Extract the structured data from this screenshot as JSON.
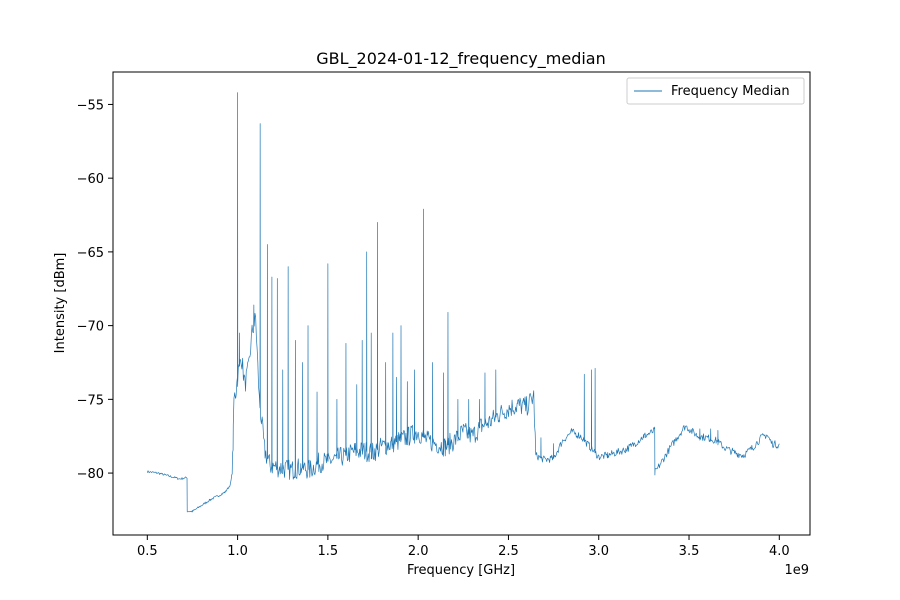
{
  "chart_data": {
    "type": "line",
    "title": "GBL_2024-01-12_frequency_median",
    "xlabel": "Frequency [GHz]",
    "ylabel": "Intensity [dBm]",
    "x_offset_label": "1e9",
    "xlim": [
      0.31,
      4.17
    ],
    "ylim": [
      -84.2,
      -52.8
    ],
    "x_ticks": [
      0.5,
      1.0,
      1.5,
      2.0,
      2.5,
      3.0,
      3.5,
      4.0
    ],
    "x_tick_labels": [
      "0.5",
      "1.0",
      "1.5",
      "2.0",
      "2.5",
      "3.0",
      "3.5",
      "4.0"
    ],
    "y_ticks": [
      -80,
      -75,
      -70,
      -65,
      -60,
      -55
    ],
    "y_tick_labels": [
      "−80",
      "−75",
      "−70",
      "−65",
      "−60",
      "−55"
    ],
    "legend_position": "top-right",
    "grid": false,
    "colors": {
      "series": "#1f77b4"
    },
    "series": [
      {
        "name": "Frequency Median",
        "baseline": [
          [
            0.5,
            -79.9
          ],
          [
            0.56,
            -80.0
          ],
          [
            0.62,
            -80.2
          ],
          [
            0.68,
            -80.4
          ],
          [
            0.72,
            -80.3
          ],
          [
            0.721,
            -82.6
          ],
          [
            0.75,
            -82.6
          ],
          [
            0.8,
            -82.2
          ],
          [
            0.85,
            -81.8
          ],
          [
            0.9,
            -81.5
          ],
          [
            0.93,
            -81.3
          ],
          [
            0.96,
            -80.8
          ],
          [
            0.97,
            -80.0
          ],
          [
            0.975,
            -78.0
          ],
          [
            0.98,
            -75.0
          ],
          [
            0.99,
            -74.5
          ],
          [
            1.0,
            -73.5
          ],
          [
            1.02,
            -72.0
          ],
          [
            1.04,
            -74.0
          ],
          [
            1.06,
            -73.0
          ],
          [
            1.08,
            -70.5
          ],
          [
            1.1,
            -69.5
          ],
          [
            1.12,
            -75.0
          ],
          [
            1.15,
            -78.5
          ],
          [
            1.18,
            -79.5
          ],
          [
            1.22,
            -79.6
          ],
          [
            1.26,
            -79.7
          ],
          [
            1.3,
            -79.8
          ],
          [
            1.35,
            -79.6
          ],
          [
            1.4,
            -79.8
          ],
          [
            1.45,
            -79.3
          ],
          [
            1.5,
            -79.2
          ],
          [
            1.55,
            -79.0
          ],
          [
            1.6,
            -78.8
          ],
          [
            1.65,
            -78.5
          ],
          [
            1.7,
            -78.5
          ],
          [
            1.75,
            -78.6
          ],
          [
            1.8,
            -78.2
          ],
          [
            1.85,
            -78.0
          ],
          [
            1.9,
            -77.8
          ],
          [
            1.95,
            -77.5
          ],
          [
            2.0,
            -77.2
          ],
          [
            2.05,
            -77.8
          ],
          [
            2.1,
            -78.0
          ],
          [
            2.15,
            -78.2
          ],
          [
            2.2,
            -77.8
          ],
          [
            2.25,
            -77.2
          ],
          [
            2.3,
            -77.5
          ],
          [
            2.35,
            -76.8
          ],
          [
            2.4,
            -76.5
          ],
          [
            2.45,
            -76.0
          ],
          [
            2.5,
            -75.6
          ],
          [
            2.55,
            -75.4
          ],
          [
            2.6,
            -75.5
          ],
          [
            2.64,
            -74.8
          ],
          [
            2.651,
            -78.8
          ],
          [
            2.7,
            -79.1
          ],
          [
            2.75,
            -79.0
          ],
          [
            2.8,
            -77.8
          ],
          [
            2.85,
            -77.2
          ],
          [
            2.9,
            -77.5
          ],
          [
            2.95,
            -78.2
          ],
          [
            3.0,
            -78.9
          ],
          [
            3.05,
            -78.8
          ],
          [
            3.1,
            -78.6
          ],
          [
            3.15,
            -78.4
          ],
          [
            3.2,
            -78.0
          ],
          [
            3.25,
            -77.5
          ],
          [
            3.3,
            -77.2
          ],
          [
            3.31,
            -77.1
          ],
          [
            3.311,
            -80.0
          ],
          [
            3.35,
            -79.2
          ],
          [
            3.4,
            -78.2
          ],
          [
            3.45,
            -77.3
          ],
          [
            3.48,
            -76.8
          ],
          [
            3.5,
            -77.0
          ],
          [
            3.55,
            -77.5
          ],
          [
            3.6,
            -77.6
          ],
          [
            3.65,
            -77.8
          ],
          [
            3.7,
            -78.3
          ],
          [
            3.75,
            -78.6
          ],
          [
            3.8,
            -78.8
          ],
          [
            3.85,
            -78.3
          ],
          [
            3.9,
            -77.6
          ],
          [
            3.93,
            -77.4
          ],
          [
            3.96,
            -78.0
          ],
          [
            4.0,
            -78.1
          ]
        ],
        "peaks": [
          [
            1.0,
            -54.2
          ],
          [
            1.01,
            -70.5
          ],
          [
            1.09,
            -68.6
          ],
          [
            1.125,
            -56.3
          ],
          [
            1.165,
            -64.5
          ],
          [
            1.19,
            -66.7
          ],
          [
            1.22,
            -66.8
          ],
          [
            1.25,
            -73.0
          ],
          [
            1.28,
            -66.0
          ],
          [
            1.32,
            -71.0
          ],
          [
            1.36,
            -72.5
          ],
          [
            1.39,
            -70.0
          ],
          [
            1.44,
            -74.5
          ],
          [
            1.5,
            -65.8
          ],
          [
            1.55,
            -75.0
          ],
          [
            1.6,
            -71.2
          ],
          [
            1.66,
            -74.0
          ],
          [
            1.69,
            -71.0
          ],
          [
            1.715,
            -65.0
          ],
          [
            1.74,
            -70.5
          ],
          [
            1.775,
            -63.0
          ],
          [
            1.82,
            -72.5
          ],
          [
            1.86,
            -70.5
          ],
          [
            1.88,
            -73.5
          ],
          [
            1.905,
            -70.0
          ],
          [
            1.94,
            -73.8
          ],
          [
            1.98,
            -73.0
          ],
          [
            2.03,
            -62.1
          ],
          [
            2.08,
            -72.5
          ],
          [
            2.14,
            -73.2
          ],
          [
            2.165,
            -69.1
          ],
          [
            2.22,
            -75.0
          ],
          [
            2.28,
            -75.0
          ],
          [
            2.34,
            -75.0
          ],
          [
            2.37,
            -73.2
          ],
          [
            2.43,
            -73.0
          ],
          [
            2.68,
            -77.6
          ],
          [
            2.75,
            -78.0
          ],
          [
            2.92,
            -73.3
          ],
          [
            2.96,
            -73.0
          ],
          [
            2.98,
            -72.9
          ],
          [
            3.18,
            -78.2
          ],
          [
            3.25,
            -77.6
          ],
          [
            3.56,
            -77.0
          ],
          [
            3.62,
            -77.0
          ],
          [
            3.66,
            -77.1
          ]
        ]
      }
    ]
  }
}
